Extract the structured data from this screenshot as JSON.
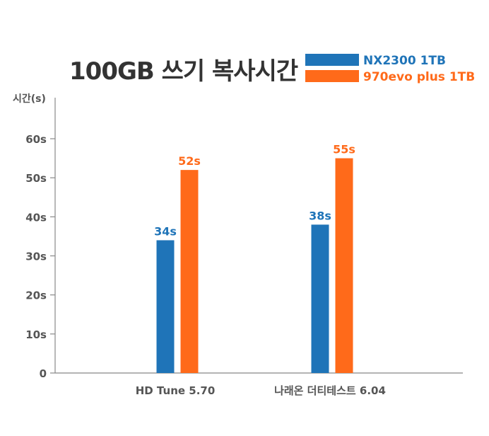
{
  "chart_data": {
    "type": "bar",
    "title": "100GB 쓰기 복사시간",
    "ylabel": "시간(s)",
    "xlabel": "",
    "categories": [
      "HD Tune 5.70",
      "나래온 더티테스트 6.04"
    ],
    "series": [
      {
        "name": "NX2300 1TB",
        "color": "#1f74b8",
        "values": [
          34,
          38
        ],
        "labels": [
          "34s",
          "38s"
        ]
      },
      {
        "name": "970evo plus 1TB",
        "color": "#ff6a1a",
        "values": [
          52,
          55
        ],
        "labels": [
          "52s",
          "55s"
        ]
      }
    ],
    "ylim": [
      0,
      70
    ],
    "yticks": [
      0,
      10,
      20,
      30,
      40,
      50,
      60
    ],
    "ytick_labels": [
      "0",
      "10s",
      "20s",
      "30s",
      "40s",
      "50s",
      "60s"
    ],
    "legend_position": "top-right",
    "grid": false
  }
}
